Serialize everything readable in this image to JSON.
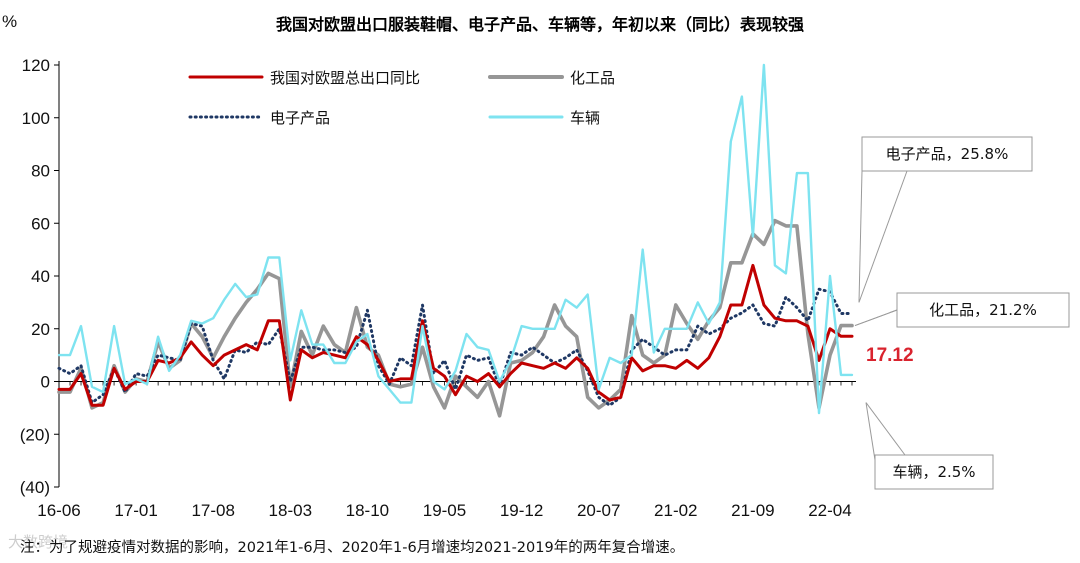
{
  "chart_data": {
    "type": "line",
    "title": "我国对欧盟出口服装鞋帽、电子产品、车辆等，年初以来（同比）表现较强",
    "ylabel": "%",
    "ylim": [
      -40,
      120
    ],
    "yticks": [
      -40,
      -20,
      0,
      20,
      40,
      60,
      80,
      100,
      120
    ],
    "ytick_labels": [
      "(40)",
      "(20)",
      "0",
      "20",
      "40",
      "60",
      "80",
      "100",
      "120"
    ],
    "x": [
      "16-06",
      "16-07",
      "16-08",
      "16-09",
      "16-10",
      "16-11",
      "16-12",
      "17-01",
      "17-02",
      "17-03",
      "17-04",
      "17-05",
      "17-06",
      "17-07",
      "17-08",
      "17-09",
      "17-10",
      "17-11",
      "17-12",
      "18-01",
      "18-02",
      "18-03",
      "18-04",
      "18-05",
      "18-06",
      "18-07",
      "18-08",
      "18-09",
      "18-10",
      "18-11",
      "18-12",
      "19-01",
      "19-02",
      "19-03",
      "19-04",
      "19-05",
      "19-06",
      "19-07",
      "19-08",
      "19-09",
      "19-10",
      "19-11",
      "19-12",
      "20-01",
      "20-02",
      "20-03",
      "20-04",
      "20-05",
      "20-06",
      "20-07",
      "20-08",
      "20-09",
      "20-10",
      "20-11",
      "20-12",
      "21-01",
      "21-02",
      "21-03",
      "21-04",
      "21-05",
      "21-06",
      "21-07",
      "21-08",
      "21-09",
      "21-10",
      "21-11",
      "21-12",
      "22-01",
      "22-02",
      "22-03",
      "22-04",
      "22-05",
      "22-06"
    ],
    "xtick_labels": [
      "16-06",
      "17-01",
      "17-08",
      "18-03",
      "18-10",
      "19-05",
      "19-12",
      "20-07",
      "21-02",
      "21-09",
      "22-04"
    ],
    "legend_position": "top-left",
    "series": [
      {
        "name": "我国对欧盟总出口同比",
        "color": "#c00000",
        "style": "solid",
        "values": [
          -3,
          -3,
          3,
          -9,
          -9,
          5,
          -3,
          0,
          0,
          8,
          7,
          9,
          15,
          10,
          6,
          10,
          12,
          14,
          12,
          23,
          23,
          -7,
          12,
          9,
          11,
          10,
          9,
          17,
          14,
          8,
          0,
          1,
          1,
          23,
          5,
          2,
          -5,
          2,
          0,
          3,
          -2,
          3,
          7,
          6,
          5,
          7,
          5,
          9,
          5,
          -4,
          -7,
          -6,
          9,
          4,
          6,
          6,
          5,
          8,
          5,
          9,
          17,
          29,
          29,
          44,
          29,
          24,
          23,
          23,
          21,
          8,
          20,
          17.12,
          17.12
        ]
      },
      {
        "name": "化工品",
        "color": "#969696",
        "style": "solid",
        "values": [
          -4,
          -4,
          5,
          -10,
          -8,
          6,
          -4,
          1,
          0,
          15,
          5,
          8,
          22,
          17,
          9,
          17,
          24,
          30,
          35,
          41,
          39,
          -2,
          19,
          10,
          21,
          14,
          11,
          28,
          13,
          10,
          -1,
          -2,
          -1,
          13,
          -2,
          -10,
          2,
          -2,
          -6,
          0,
          -13,
          7,
          8,
          11,
          17,
          29,
          21,
          17,
          -6,
          -10,
          -7,
          -3,
          25,
          10,
          7,
          10,
          29,
          22,
          16,
          23,
          28,
          45,
          45,
          56,
          52,
          61,
          59,
          59,
          18,
          -10,
          10,
          21.2,
          21.2
        ]
      },
      {
        "name": "电子产品",
        "color": "#1f3864",
        "style": "dotted",
        "values": [
          5,
          3,
          6,
          -8,
          -5,
          5,
          -4,
          3,
          2,
          10,
          9,
          8,
          22,
          21,
          8,
          1,
          12,
          11,
          15,
          14,
          20,
          0,
          13,
          13,
          12,
          12,
          11,
          13,
          27,
          6,
          -1,
          9,
          6,
          29,
          3,
          8,
          -3,
          10,
          8,
          9,
          -2,
          11,
          10,
          13,
          10,
          7,
          9,
          12,
          4,
          -6,
          -9,
          -6,
          12,
          16,
          13,
          10,
          12,
          12,
          21,
          18,
          20,
          24,
          26,
          29,
          22,
          21,
          32,
          28,
          23,
          35,
          34,
          25.8,
          25.8
        ]
      },
      {
        "name": "车辆",
        "color": "#7ee3f0",
        "style": "solid",
        "values": [
          10,
          10,
          21,
          -2,
          -4,
          21,
          -1,
          1,
          -1,
          17,
          4,
          10,
          23,
          22,
          24,
          31,
          37,
          32,
          33,
          47,
          47,
          8,
          27,
          14,
          14,
          7,
          7,
          15,
          18,
          2,
          -3,
          -8,
          -8,
          21,
          0,
          -3,
          4,
          18,
          13,
          12,
          0,
          8,
          21,
          20,
          20,
          20,
          31,
          28,
          33,
          -3,
          9,
          7,
          10,
          50,
          11,
          20,
          20,
          20,
          30,
          22,
          30,
          91,
          108,
          55,
          120,
          44,
          41,
          79,
          79,
          -12,
          40,
          2.5,
          2.5
        ]
      }
    ],
    "callouts": [
      {
        "series": "电子产品",
        "text": "电子产品，25.8%"
      },
      {
        "series": "化工品",
        "text": "化工品，21.2%"
      },
      {
        "series": "车辆",
        "text": "车辆，2.5%"
      }
    ],
    "final_value_label": "17.12"
  },
  "note": "注：为了规避疫情对数据的影响，2021年1-6月、2020年1-6月增速均2021-2019年的两年复合增速。",
  "watermark": "大数跨境"
}
